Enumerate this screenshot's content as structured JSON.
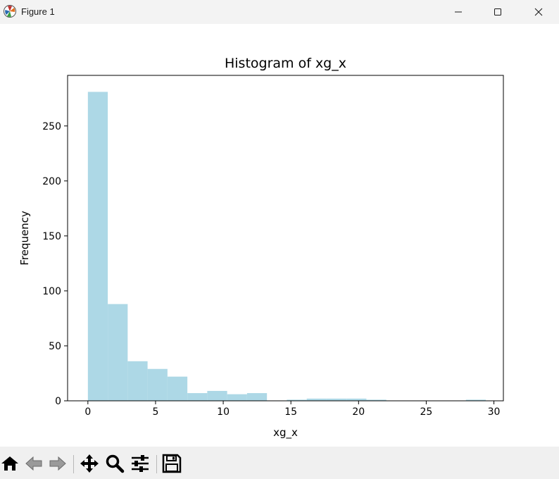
{
  "window": {
    "title": "Figure 1",
    "icons": [
      "matplotlib-logo-icon",
      "minimize-icon",
      "maximize-icon",
      "close-icon"
    ]
  },
  "toolbar": {
    "buttons": [
      "home-icon",
      "back-arrow-icon",
      "forward-arrow-icon",
      "pan-icon",
      "zoom-icon",
      "configure-subplots-icon",
      "save-icon"
    ]
  },
  "chart_data": {
    "type": "histogram",
    "title": "Histogram of xg_x",
    "xlabel": "xg_x",
    "ylabel": "Frequency",
    "color": "#add8e6",
    "xlim": [
      -1.5,
      30.7
    ],
    "ylim": [
      0,
      296
    ],
    "xticks": [
      0,
      5,
      10,
      15,
      20,
      25,
      30
    ],
    "yticks": [
      0,
      50,
      100,
      150,
      200,
      250
    ],
    "grid": false,
    "bins": [
      {
        "x0": 0.0,
        "x1": 1.47,
        "count": 281
      },
      {
        "x0": 1.47,
        "x1": 2.94,
        "count": 88
      },
      {
        "x0": 2.94,
        "x1": 4.41,
        "count": 36
      },
      {
        "x0": 4.41,
        "x1": 5.88,
        "count": 29
      },
      {
        "x0": 5.88,
        "x1": 7.35,
        "count": 22
      },
      {
        "x0": 7.35,
        "x1": 8.82,
        "count": 7
      },
      {
        "x0": 8.82,
        "x1": 10.29,
        "count": 9
      },
      {
        "x0": 10.29,
        "x1": 11.76,
        "count": 6
      },
      {
        "x0": 11.76,
        "x1": 13.23,
        "count": 7
      },
      {
        "x0": 13.23,
        "x1": 14.7,
        "count": 0
      },
      {
        "x0": 14.7,
        "x1": 16.17,
        "count": 1
      },
      {
        "x0": 16.17,
        "x1": 17.64,
        "count": 2
      },
      {
        "x0": 17.64,
        "x1": 19.11,
        "count": 2
      },
      {
        "x0": 19.11,
        "x1": 20.58,
        "count": 2
      },
      {
        "x0": 20.58,
        "x1": 22.05,
        "count": 1
      },
      {
        "x0": 22.05,
        "x1": 23.52,
        "count": 0
      },
      {
        "x0": 23.52,
        "x1": 24.99,
        "count": 0
      },
      {
        "x0": 24.99,
        "x1": 26.46,
        "count": 0
      },
      {
        "x0": 26.46,
        "x1": 27.93,
        "count": 0
      },
      {
        "x0": 27.93,
        "x1": 29.4,
        "count": 1
      }
    ]
  }
}
